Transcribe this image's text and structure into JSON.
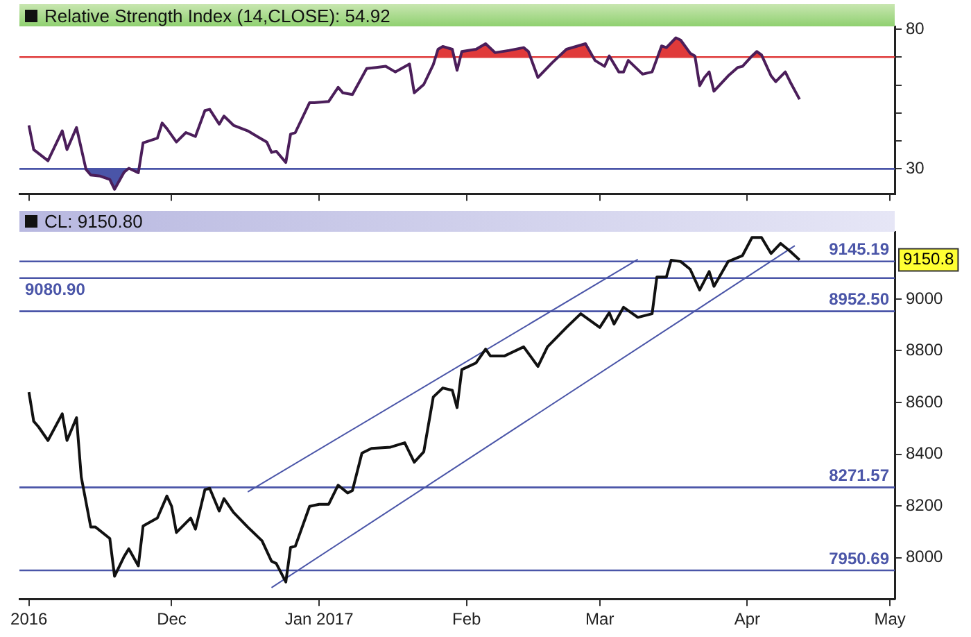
{
  "chart_data": [
    {
      "type": "line",
      "title": "Relative Strength Index (14,CLOSE): 54.92",
      "xlim": [
        "2016-10-30",
        "2017-05-02"
      ],
      "xticks": [
        {
          "value": "2016-11-01",
          "label": null
        },
        {
          "value": "2016-12-01",
          "label": null
        },
        {
          "value": "2017-01-01",
          "label": null
        },
        {
          "value": "2017-02-01",
          "label": null
        },
        {
          "value": "2017-03-01",
          "label": null
        },
        {
          "value": "2017-04-01",
          "label": null
        },
        {
          "value": "2017-05-01",
          "label": null
        }
      ],
      "ylim": [
        21,
        81
      ],
      "yticks": [
        30,
        {
          "value": 40,
          "label": null
        },
        {
          "value": 50,
          "label": null
        },
        {
          "value": 60,
          "label": null
        },
        {
          "value": 70,
          "label": null
        },
        80
      ],
      "tick_labels": "y",
      "series": [
        {
          "color": "#4b1e5a",
          "x": [
            "2016-11-01",
            "2016-11-02",
            "2016-11-05",
            "2016-11-08",
            "2016-11-09",
            "2016-11-11",
            "2016-11-13",
            "2016-11-14",
            "2016-11-16",
            "2016-11-18",
            "2016-11-19",
            "2016-11-21",
            "2016-11-22",
            "2016-11-24",
            "2016-11-25",
            "2016-11-28",
            "2016-11-29",
            "2016-11-30",
            "2016-12-02",
            "2016-12-04",
            "2016-12-06",
            "2016-12-08",
            "2016-12-09",
            "2016-12-11",
            "2016-12-12",
            "2016-12-14",
            "2016-12-17",
            "2016-12-19",
            "2016-12-21",
            "2016-12-22",
            "2016-12-23",
            "2016-12-25",
            "2016-12-26",
            "2016-12-27",
            "2016-12-30",
            "2016-12-31",
            "2017-01-03",
            "2017-01-05",
            "2017-01-06",
            "2017-01-08",
            "2017-01-11",
            "2017-01-13",
            "2017-01-15",
            "2017-01-17",
            "2017-01-20",
            "2017-01-21",
            "2017-01-23",
            "2017-01-25",
            "2017-01-26",
            "2017-01-27",
            "2017-01-29",
            "2017-01-30",
            "2017-01-31",
            "2017-02-03",
            "2017-02-05",
            "2017-02-07",
            "2017-02-10",
            "2017-02-13",
            "2017-02-14",
            "2017-02-16",
            "2017-02-19",
            "2017-02-22",
            "2017-02-26",
            "2017-02-28",
            "2017-03-02",
            "2017-03-03",
            "2017-03-05",
            "2017-03-06",
            "2017-03-07",
            "2017-03-10",
            "2017-03-12",
            "2017-03-14",
            "2017-03-15",
            "2017-03-17",
            "2017-03-18",
            "2017-03-20",
            "2017-03-21",
            "2017-03-22",
            "2017-03-23",
            "2017-03-24",
            "2017-03-25",
            "2017-03-28",
            "2017-03-30",
            "2017-03-31",
            "2017-04-02",
            "2017-04-03",
            "2017-04-04",
            "2017-04-06",
            "2017-04-07",
            "2017-04-09",
            "2017-04-10",
            "2017-04-12"
          ],
          "values": [
            45.6,
            36.9,
            32.9,
            43.6,
            36.9,
            44.8,
            29.8,
            27.8,
            27.4,
            26.2,
            22.7,
            28.8,
            30.2,
            28.6,
            39.3,
            41,
            46.4,
            44.4,
            39.6,
            43,
            41.6,
            50.9,
            51.3,
            46,
            48.9,
            45.6,
            43.6,
            41.6,
            39.6,
            35.9,
            36.3,
            32.3,
            42.4,
            43,
            53.7,
            53.7,
            54.1,
            59.2,
            57.2,
            56.6,
            65.9,
            66.3,
            66.7,
            64.7,
            67.5,
            57.2,
            60.2,
            67.3,
            72.8,
            73.8,
            72.8,
            65.3,
            72,
            72.8,
            74.8,
            71.6,
            72.4,
            73.4,
            72,
            62.7,
            68,
            72.8,
            74.8,
            68.8,
            66.7,
            70.4,
            64.7,
            64.7,
            68.8,
            63.9,
            64.7,
            74,
            73.4,
            76.9,
            76.1,
            71.4,
            70.4,
            59.8,
            62.7,
            64.7,
            57.8,
            63.3,
            66.3,
            66.7,
            70.4,
            72,
            70.8,
            63.3,
            61.2,
            64.7,
            61.2,
            54.9
          ]
        }
      ],
      "ref_lines": [
        {
          "axis": "y",
          "value": 70,
          "color": "#e03a3a"
        },
        {
          "axis": "y",
          "value": 30,
          "color": "#4a55a8"
        }
      ]
    },
    {
      "type": "line",
      "title": "CL: 9150.80",
      "xlim": [
        "2016-10-30",
        "2017-05-02"
      ],
      "xticks": [
        {
          "value": "2016-11-01",
          "label": "2016"
        },
        {
          "value": "2016-12-01",
          "label": "Dec"
        },
        {
          "value": "2017-01-01",
          "label": "Jan 2017"
        },
        {
          "value": "2017-02-01",
          "label": "Feb"
        },
        {
          "value": "2017-03-01",
          "label": "Mar"
        },
        {
          "value": "2017-04-01",
          "label": "Apr"
        },
        {
          "value": "2017-05-01",
          "label": "May"
        }
      ],
      "ylim": [
        7840,
        9260
      ],
      "yticks": [
        8000,
        8200,
        8400,
        8600,
        8800,
        9000
      ],
      "series": [
        {
          "color": "#111111",
          "x": [
            "2016-11-01",
            "2016-11-02",
            "2016-11-03",
            "2016-11-05",
            "2016-11-08",
            "2016-11-09",
            "2016-11-11",
            "2016-11-12",
            "2016-11-14",
            "2016-11-15",
            "2016-11-18",
            "2016-11-19",
            "2016-11-21",
            "2016-11-22",
            "2016-11-24",
            "2016-11-25",
            "2016-11-28",
            "2016-11-30",
            "2016-12-01",
            "2016-12-02",
            "2016-12-05",
            "2016-12-06",
            "2016-12-08",
            "2016-12-09",
            "2016-12-11",
            "2016-12-12",
            "2016-12-14",
            "2016-12-17",
            "2016-12-20",
            "2016-12-22",
            "2016-12-23",
            "2016-12-25",
            "2016-12-26",
            "2016-12-27",
            "2016-12-30",
            "2017-01-01",
            "2017-01-03",
            "2017-01-05",
            "2017-01-07",
            "2017-01-08",
            "2017-01-10",
            "2017-01-12",
            "2017-01-16",
            "2017-01-19",
            "2017-01-21",
            "2017-01-23",
            "2017-01-25",
            "2017-01-27",
            "2017-01-29",
            "2017-01-30",
            "2017-01-31",
            "2017-02-03",
            "2017-02-05",
            "2017-02-06",
            "2017-02-09",
            "2017-02-13",
            "2017-02-16",
            "2017-02-18",
            "2017-02-22",
            "2017-02-25",
            "2017-03-01",
            "2017-03-03",
            "2017-03-04",
            "2017-03-06",
            "2017-03-09",
            "2017-03-12",
            "2017-03-13",
            "2017-03-15",
            "2017-03-16",
            "2017-03-18",
            "2017-03-20",
            "2017-03-22",
            "2017-03-24",
            "2017-03-25",
            "2017-03-28",
            "2017-03-31",
            "2017-04-02",
            "2017-04-04",
            "2017-04-06",
            "2017-04-08",
            "2017-04-10",
            "2017-04-12"
          ],
          "values": [
            8640,
            8527,
            8506,
            8453,
            8556,
            8453,
            8541,
            8312,
            8118,
            8118,
            8074,
            7928,
            8004,
            8034,
            7968,
            8122,
            8153,
            8238,
            8198,
            8097,
            8153,
            8110,
            8263,
            8268,
            8180,
            8228,
            8175,
            8118,
            8065,
            7986,
            7977,
            7906,
            8039,
            8044,
            8198,
            8206,
            8206,
            8280,
            8250,
            8259,
            8404,
            8422,
            8427,
            8444,
            8369,
            8409,
            8621,
            8656,
            8647,
            8580,
            8727,
            8753,
            8806,
            8780,
            8780,
            8815,
            8739,
            8815,
            8890,
            8943,
            8890,
            8947,
            8903,
            8968,
            8929,
            8943,
            9085,
            9085,
            9150,
            9145,
            9115,
            9035,
            9106,
            9049,
            9145,
            9168,
            9238,
            9238,
            9176,
            9215,
            9185,
            9151
          ]
        },
        {
          "type": "line",
          "color": "#4a55a8",
          "x": [
            "2016-12-17",
            "2017-03-09"
          ],
          "values": [
            8254,
            9153
          ]
        },
        {
          "type": "line",
          "color": "#4a55a8",
          "x": [
            "2016-12-22",
            "2017-04-11"
          ],
          "values": [
            7884,
            9206
          ]
        }
      ],
      "ref_lines": [
        {
          "axis": "y",
          "value": 9145.19,
          "label": "9145.19",
          "color": "#4a55a8"
        },
        {
          "axis": "y",
          "value": 9080.9,
          "label": "9080.90",
          "color": "#4a55a8"
        },
        {
          "axis": "y",
          "value": 8952.5,
          "label": "8952.50",
          "color": "#4a55a8"
        },
        {
          "axis": "y",
          "value": 8271.57,
          "label": "8271.57",
          "color": "#4a55a8"
        },
        {
          "axis": "y",
          "value": 7950.69,
          "label": "7950.69",
          "color": "#4a55a8"
        }
      ],
      "annotations": [
        "9150.8"
      ]
    }
  ]
}
